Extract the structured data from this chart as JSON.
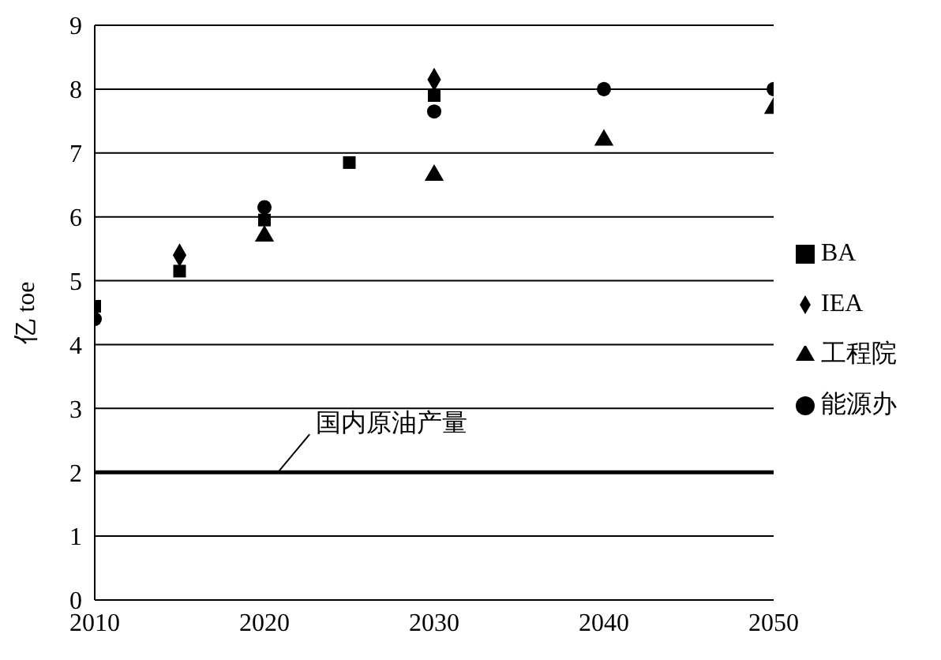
{
  "chart_data": {
    "type": "scatter",
    "ylabel": "亿 toe",
    "xlim": [
      2010,
      2050
    ],
    "xticks": [
      2010,
      2020,
      2030,
      2040,
      2050
    ],
    "ylim": [
      0,
      9
    ],
    "yticks": [
      0,
      1,
      2,
      3,
      4,
      5,
      6,
      7,
      8,
      9
    ],
    "grid": "y",
    "legend": "right",
    "series": [
      {
        "name": "IEA",
        "color": "#000000",
        "marker": "diamond",
        "x": [
          2015,
          2030
        ],
        "values": [
          5.4,
          8.15
        ]
      },
      {
        "name": "BA",
        "color": "#000000",
        "marker": "square",
        "x": [
          2010,
          2015,
          2020,
          2025,
          2030
        ],
        "values": [
          4.6,
          5.15,
          5.95,
          6.85,
          7.9
        ]
      },
      {
        "name": "工程院",
        "color": "#000000",
        "marker": "triangle",
        "x": [
          2020,
          2030,
          2040,
          2050
        ],
        "values": [
          5.7,
          6.65,
          7.2,
          7.7
        ]
      },
      {
        "name": "能源办",
        "color": "#000000",
        "marker": "circle",
        "x": [
          2010,
          2020,
          2030,
          2040,
          2050
        ],
        "values": [
          4.4,
          6.15,
          7.65,
          8.0,
          8.0
        ]
      }
    ],
    "ref_lines": [
      {
        "axis": "y",
        "value": 2,
        "label": "国内原油产量",
        "color": "#000000"
      }
    ]
  }
}
